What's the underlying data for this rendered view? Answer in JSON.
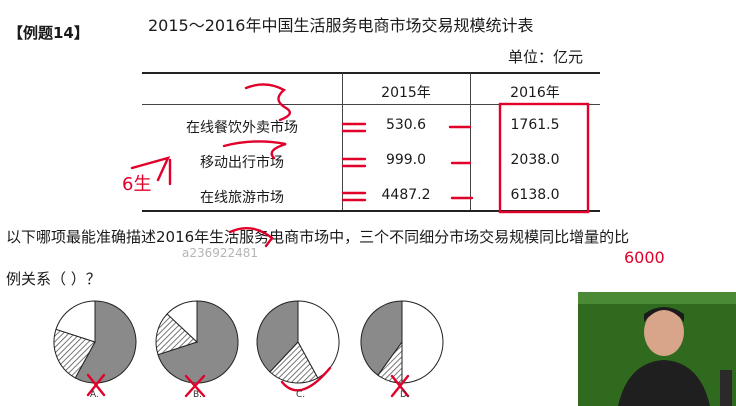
{
  "header": {
    "tag": "【例题14】",
    "title": "2015～2016年中国生活服务电商市场交易规模统计表",
    "unit": "单位：亿元"
  },
  "table": {
    "columns": [
      "",
      "2015年",
      "2016年"
    ],
    "rows": [
      {
        "label": "在线餐饮外卖市场",
        "v2015": "530.6",
        "v2016": "1761.5"
      },
      {
        "label": "移动出行市场",
        "v2015": "999.0",
        "v2016": "2038.0"
      },
      {
        "label": "在线旅游市场",
        "v2015": "4487.2",
        "v2016": "6138.0"
      }
    ]
  },
  "question": {
    "line1": "以下哪项最能准确描述2016年生活服务电商市场中，三个不同细分市场交易规模同比增量的比",
    "line2": "例关系（    ）？"
  },
  "watermark": "a236922481",
  "options": [
    {
      "label": "A.",
      "mark": "✗",
      "slices": [
        {
          "pct": 0.58,
          "fill": "solid"
        },
        {
          "pct": 0.22,
          "fill": "hatch"
        },
        {
          "pct": 0.2,
          "fill": "white"
        }
      ]
    },
    {
      "label": "B.",
      "mark": "✗",
      "slices": [
        {
          "pct": 0.7,
          "fill": "solid"
        },
        {
          "pct": 0.17,
          "fill": "hatch"
        },
        {
          "pct": 0.13,
          "fill": "white"
        }
      ]
    },
    {
      "label": "C.",
      "mark": "✓",
      "slices": [
        {
          "pct": 0.42,
          "fill": "white"
        },
        {
          "pct": 0.2,
          "fill": "hatch"
        },
        {
          "pct": 0.38,
          "fill": "solid"
        }
      ]
    },
    {
      "label": "D.",
      "mark": "✗",
      "slices": [
        {
          "pct": 0.5,
          "fill": "white"
        },
        {
          "pct": 0.1,
          "fill": "hatch"
        },
        {
          "pct": 0.4,
          "fill": "solid"
        }
      ]
    }
  ],
  "annotations": {
    "left_label": "6生",
    "right_note": "6000",
    "eq": "=",
    "dash": "-"
  },
  "colors": {
    "ink_red": "#e0002a",
    "pie_solid": "#8a8a8a",
    "pie_hatch": "#555555",
    "video_bg": "#2f6a1f"
  }
}
